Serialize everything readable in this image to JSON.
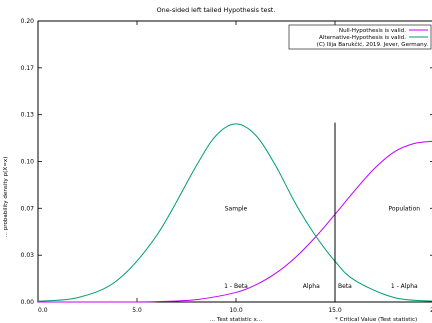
{
  "chart_data": {
    "type": "line",
    "title": "One-sided left tailed Hypothesis test.",
    "xlabel": "... Test statistic x...",
    "ylabel": "... probability density p(X=x)",
    "xlim": [
      0,
      20
    ],
    "ylim": [
      0,
      0.2
    ],
    "x_ticks": [
      "0.0",
      "5.0",
      "10.0",
      "15.0",
      "20"
    ],
    "y_ticks": [
      "0.00",
      "0.03",
      "0.07",
      "0.10",
      "0.13",
      "0.17",
      "0.20"
    ],
    "y_tick_values": [
      0,
      0.0333,
      0.0667,
      0.1,
      0.1333,
      0.1667,
      0.2
    ],
    "grid": false,
    "legend_position": "top-right",
    "series": [
      {
        "name": "Null-Hypothesis is valid.",
        "color": "#c000ff",
        "x": [
          0,
          2,
          4,
          6,
          8,
          10,
          11,
          12,
          13,
          14,
          15,
          16,
          17,
          18,
          19,
          20
        ],
        "y": [
          0.0,
          0.0,
          0.0,
          0.0003,
          0.0017,
          0.0068,
          0.0122,
          0.0204,
          0.0317,
          0.046,
          0.0624,
          0.0794,
          0.0951,
          0.1069,
          0.1128,
          0.1144
        ]
      },
      {
        "name": "Alternative-Hypothesis is valid.",
        "color": "#009e73",
        "x": [
          0,
          2,
          4,
          6,
          8,
          9,
          10,
          11,
          12,
          13,
          14,
          15,
          16,
          18,
          20
        ],
        "y": [
          0.0006,
          0.0031,
          0.0154,
          0.0475,
          0.0971,
          0.1186,
          0.1268,
          0.1186,
          0.0971,
          0.0702,
          0.0475,
          0.029,
          0.0154,
          0.0031,
          0.0006
        ]
      }
    ],
    "critical_value": 15.0,
    "critical_line_top": 0.1277,
    "annotation_lines": {
      "copyright": "(C) Ilija Barukčić, 2019. Jever, Germany.",
      "critical": "* Critical Value (Test statistic)"
    },
    "annotations": [
      {
        "text": "Sample",
        "x": 10.0,
        "y": 0.065
      },
      {
        "text": "Population",
        "x": 18.5,
        "y": 0.065
      },
      {
        "text": "1 - Beta",
        "x": 10.0,
        "y": 0.01
      },
      {
        "text": "Alpha",
        "x": 13.8,
        "y": 0.01
      },
      {
        "text": "Beta",
        "x": 15.5,
        "y": 0.01
      },
      {
        "text": "1 - Alpha",
        "x": 18.5,
        "y": 0.01
      }
    ]
  }
}
